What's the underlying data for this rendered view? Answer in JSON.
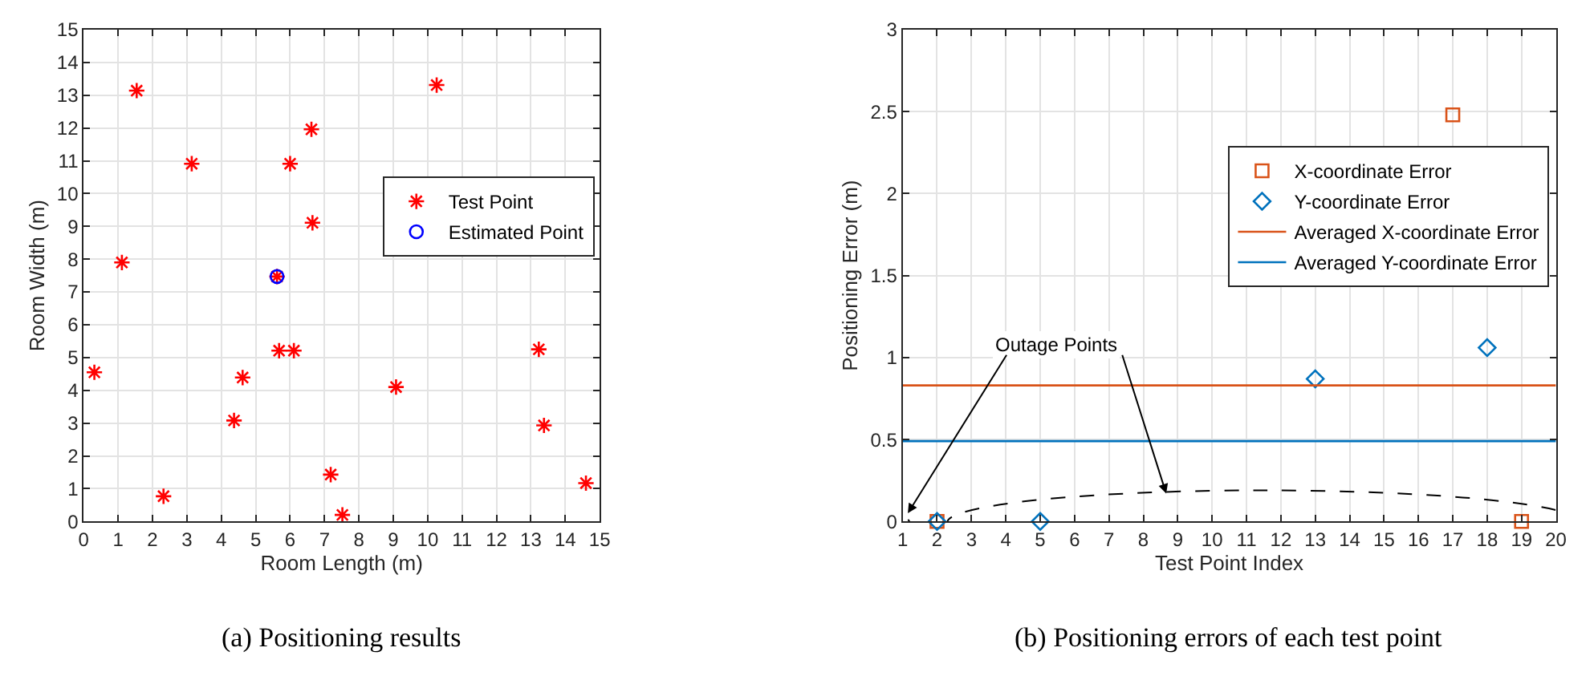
{
  "chart_data": [
    {
      "type": "scatter",
      "title": "(a) Positioning results",
      "xlabel": "Room Length (m)",
      "ylabel": "Room Width (m)",
      "xlim": [
        0,
        15
      ],
      "xticks": [
        0,
        1,
        2,
        3,
        4,
        5,
        6,
        7,
        8,
        9,
        10,
        11,
        12,
        13,
        14,
        15
      ],
      "ylim": [
        0,
        15
      ],
      "yticks": [
        0,
        1,
        2,
        3,
        4,
        5,
        6,
        7,
        8,
        9,
        10,
        11,
        12,
        13,
        14,
        15
      ],
      "grid": true,
      "legend": "right",
      "series": [
        {
          "name": "Test Point",
          "color": "#ff0000",
          "marker": "cross",
          "x": [
            1.54,
            3.14,
            6.62,
            6.0,
            6.65,
            1.11,
            5.62,
            5.68,
            6.11,
            0.31,
            4.62,
            4.37,
            9.08,
            2.32,
            7.18,
            7.52,
            10.26,
            13.23,
            13.38,
            14.6
          ],
          "values": [
            13.14,
            10.91,
            11.96,
            10.91,
            9.11,
            7.9,
            7.47,
            5.21,
            5.21,
            4.55,
            4.39,
            3.08,
            4.1,
            0.77,
            1.43,
            0.2,
            13.31,
            5.25,
            2.93,
            1.17
          ]
        },
        {
          "name": "Estimated Point",
          "color": "#0000ff",
          "marker": "circle",
          "x": [
            5.62
          ],
          "values": [
            7.47
          ]
        }
      ]
    },
    {
      "type": "scatter",
      "title": "(b) Positioning errors of each test point",
      "xlabel": "Test Point Index",
      "ylabel": "Positioning Error (m)",
      "xlim": [
        1,
        20
      ],
      "xticks": [
        1,
        2,
        3,
        4,
        5,
        6,
        7,
        8,
        9,
        10,
        11,
        12,
        13,
        14,
        15,
        16,
        17,
        18,
        19,
        20
      ],
      "ylim": [
        0,
        3
      ],
      "yticks": [
        0,
        0.5,
        1,
        1.5,
        2,
        2.5,
        3
      ],
      "grid": true,
      "legend": "right",
      "annotations": [
        "Outage Points"
      ],
      "series": [
        {
          "name": "X-coordinate Error",
          "color": "#d95319",
          "marker": "square",
          "x": [
            2,
            17,
            19
          ],
          "values": [
            0,
            2.48,
            0
          ]
        },
        {
          "name": "Y-coordinate Error",
          "color": "#0072bd",
          "marker": "diamond",
          "x": [
            2,
            5,
            13,
            18
          ],
          "values": [
            0,
            0,
            0.87,
            1.06
          ]
        },
        {
          "name": "Averaged X-coordinate Error",
          "type": "line",
          "color": "#d95319",
          "marker": "none",
          "x": [
            1,
            20
          ],
          "values": [
            0.83,
            0.83
          ]
        },
        {
          "name": "Averaged Y-coordinate Error",
          "type": "line",
          "color": "#0072bd",
          "marker": "none",
          "x": [
            1,
            20
          ],
          "values": [
            0.49,
            0.49
          ]
        }
      ]
    }
  ]
}
